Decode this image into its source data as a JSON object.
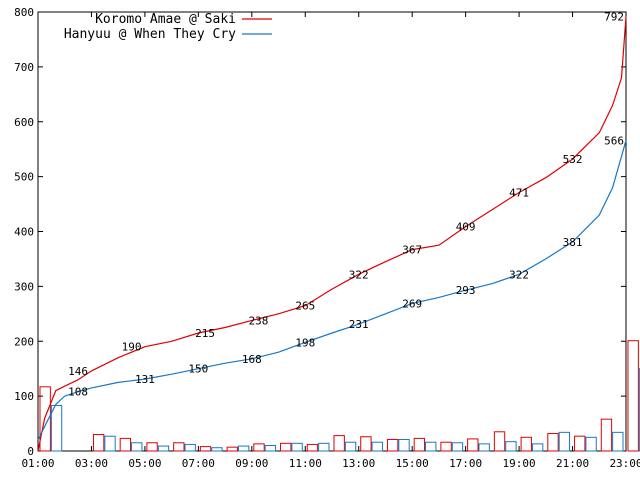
{
  "chart_data": {
    "type": "line",
    "title": "",
    "xlabel": "",
    "ylabel": "",
    "xlim": [
      "01:00",
      "23:00"
    ],
    "ylim": [
      0,
      800
    ],
    "x_ticks": [
      "01:00",
      "03:00",
      "05:00",
      "07:00",
      "09:00",
      "11:00",
      "13:00",
      "15:00",
      "17:00",
      "19:00",
      "21:00",
      "23:00"
    ],
    "y_ticks": [
      0,
      100,
      200,
      300,
      400,
      500,
      600,
      700,
      800
    ],
    "legend_position": "top-left",
    "grid": false,
    "series": [
      {
        "name": "Koromo Amae @ Saki",
        "color": "#e00000",
        "cumulative": [
          [
            "01:00",
            0
          ],
          [
            "01:15",
            60
          ],
          [
            "01:40",
            110
          ],
          [
            "02:00",
            118
          ],
          [
            "02:30",
            130
          ],
          [
            "03:00",
            146
          ],
          [
            "04:00",
            170
          ],
          [
            "05:00",
            190
          ],
          [
            "06:00",
            200
          ],
          [
            "07:00",
            215
          ],
          [
            "08:00",
            225
          ],
          [
            "09:00",
            238
          ],
          [
            "10:00",
            250
          ],
          [
            "11:00",
            265
          ],
          [
            "12:00",
            295
          ],
          [
            "13:00",
            322
          ],
          [
            "14:00",
            345
          ],
          [
            "15:00",
            367
          ],
          [
            "16:00",
            375
          ],
          [
            "17:00",
            409
          ],
          [
            "18:00",
            440
          ],
          [
            "19:00",
            471
          ],
          [
            "20:00",
            498
          ],
          [
            "21:00",
            532
          ],
          [
            "22:00",
            580
          ],
          [
            "22:30",
            630
          ],
          [
            "22:50",
            680
          ],
          [
            "23:00",
            792
          ]
        ],
        "labels": [
          [
            "02:30",
            146
          ],
          [
            "04:30",
            190
          ],
          [
            "07:15",
            215
          ],
          [
            "09:15",
            238
          ],
          [
            "11:00",
            265
          ],
          [
            "13:00",
            322
          ],
          [
            "15:00",
            367
          ],
          [
            "17:00",
            409
          ],
          [
            "19:00",
            471
          ],
          [
            "21:00",
            532
          ],
          [
            "23:00",
            792
          ]
        ],
        "hourly": [
          117,
          0,
          30,
          23,
          15,
          15,
          8,
          7,
          13,
          14,
          12,
          28,
          26,
          21,
          23,
          16,
          22,
          35,
          25,
          32,
          27,
          58,
          201
        ]
      },
      {
        "name": "Hanyuu @ When They Cry",
        "color": "#1878c8",
        "cumulative": [
          [
            "01:00",
            20
          ],
          [
            "01:15",
            45
          ],
          [
            "01:40",
            85
          ],
          [
            "02:00",
            100
          ],
          [
            "02:30",
            108
          ],
          [
            "03:00",
            115
          ],
          [
            "04:00",
            125
          ],
          [
            "05:00",
            131
          ],
          [
            "06:00",
            140
          ],
          [
            "07:00",
            150
          ],
          [
            "08:00",
            160
          ],
          [
            "09:00",
            168
          ],
          [
            "10:00",
            180
          ],
          [
            "11:00",
            198
          ],
          [
            "12:00",
            215
          ],
          [
            "13:00",
            231
          ],
          [
            "14:00",
            250
          ],
          [
            "15:00",
            269
          ],
          [
            "16:00",
            280
          ],
          [
            "17:00",
            293
          ],
          [
            "18:00",
            305
          ],
          [
            "19:00",
            322
          ],
          [
            "20:00",
            350
          ],
          [
            "21:00",
            381
          ],
          [
            "22:00",
            430
          ],
          [
            "22:30",
            480
          ],
          [
            "23:00",
            566
          ]
        ],
        "labels": [
          [
            "02:30",
            108
          ],
          [
            "05:00",
            131
          ],
          [
            "07:00",
            150
          ],
          [
            "09:00",
            168
          ],
          [
            "11:00",
            198
          ],
          [
            "13:00",
            231
          ],
          [
            "15:00",
            269
          ],
          [
            "17:00",
            293
          ],
          [
            "19:00",
            322
          ],
          [
            "21:00",
            381
          ],
          [
            "23:00",
            566
          ]
        ],
        "hourly": [
          83,
          0,
          27,
          15,
          9,
          12,
          6,
          9,
          10,
          14,
          14,
          16,
          16,
          21,
          16,
          15,
          13,
          17,
          13,
          34,
          25,
          34,
          150
        ]
      }
    ]
  }
}
